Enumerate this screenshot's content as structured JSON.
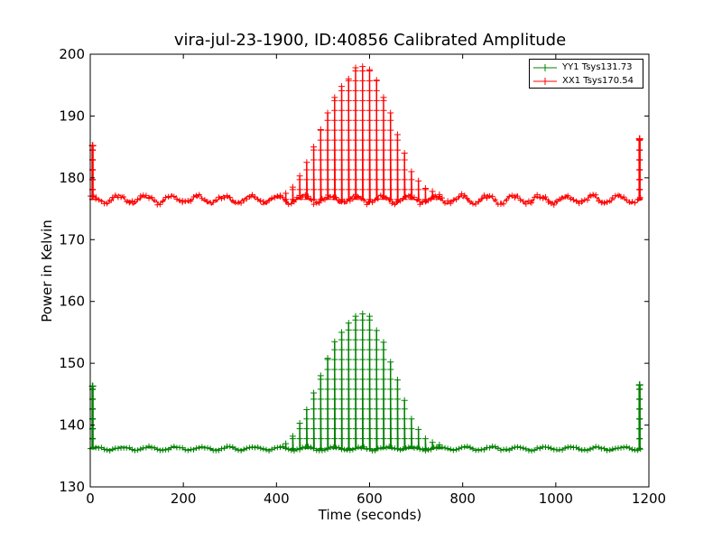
{
  "chart_data": {
    "type": "line",
    "title": "vira-jul-23-1900, ID:40856 Calibrated Amplitude",
    "xlabel": "Time (seconds)",
    "ylabel": "Power in Kelvin",
    "xlim": [
      0,
      1200
    ],
    "ylim": [
      130,
      200
    ],
    "xticks": [
      0,
      200,
      400,
      600,
      800,
      1000,
      1200
    ],
    "yticks": [
      130,
      140,
      150,
      160,
      170,
      180,
      190,
      200
    ],
    "grid": false,
    "legend_position": "top-right",
    "marker": "+",
    "series": [
      {
        "name": "YY1 Tsys131.73",
        "color": "#008000",
        "baseline": 136.2,
        "noise": 0.3,
        "endpoint_spikes": [
          {
            "x": 5,
            "y": 146.3
          },
          {
            "x": 1180,
            "y": 146.5
          }
        ],
        "peak_centers": [
          420,
          435,
          450,
          465,
          480,
          495,
          510,
          525,
          540,
          555,
          570,
          585,
          600,
          615,
          630,
          645,
          660,
          675,
          690,
          705,
          720,
          735,
          750
        ],
        "peak_values": [
          137.0,
          138.2,
          140.3,
          142.5,
          145.2,
          148.0,
          150.8,
          153.5,
          155.0,
          156.5,
          157.6,
          158.0,
          157.6,
          155.3,
          153.4,
          150.2,
          147.3,
          144.0,
          141.0,
          139.3,
          137.8,
          137.2,
          136.8
        ]
      },
      {
        "name": "XX1 Tsys170.54",
        "color": "#ff0000",
        "baseline": 176.5,
        "noise": 0.7,
        "endpoint_spikes": [
          {
            "x": 5,
            "y": 185.2
          },
          {
            "x": 1180,
            "y": 186.3
          }
        ],
        "peak_centers": [
          420,
          435,
          450,
          465,
          480,
          495,
          510,
          525,
          540,
          555,
          570,
          585,
          600,
          615,
          630,
          645,
          660,
          675,
          690,
          705,
          720,
          735,
          750
        ],
        "peak_values": [
          177.5,
          178.5,
          180.3,
          182.5,
          185.0,
          187.8,
          190.5,
          193.0,
          194.8,
          196.0,
          197.8,
          198.0,
          197.5,
          195.8,
          193.0,
          190.5,
          187.0,
          184.0,
          181.0,
          179.5,
          178.3,
          177.8,
          177.3
        ]
      }
    ]
  }
}
